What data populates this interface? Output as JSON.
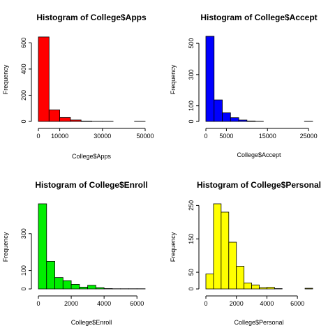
{
  "chart_data": [
    {
      "type": "bar",
      "title": "Histogram of College$Apps",
      "xlabel": "College$Apps",
      "ylabel": "Frequency",
      "color": "#ff0000",
      "bin_edges": [
        0,
        5000,
        10000,
        15000,
        20000,
        25000,
        30000,
        35000,
        40000,
        45000,
        50000
      ],
      "values": [
        645,
        88,
        30,
        11,
        3,
        1,
        1,
        0,
        0,
        1
      ],
      "xlim": [
        0,
        50000
      ],
      "ylim": [
        0,
        650
      ],
      "x_ticks": [
        0,
        10000,
        30000,
        50000
      ],
      "y_ticks": [
        0,
        200,
        400,
        600
      ]
    },
    {
      "type": "bar",
      "title": "Histogram of College$Accept",
      "xlabel": "College$Accept",
      "ylabel": "Frequency",
      "color": "#0000ff",
      "bin_edges": [
        0,
        2000,
        4000,
        6000,
        8000,
        10000,
        12000,
        14000,
        16000,
        18000,
        20000,
        22000,
        24000,
        26000
      ],
      "values": [
        545,
        138,
        55,
        24,
        9,
        3,
        1,
        0,
        0,
        0,
        0,
        0,
        1
      ],
      "xlim": [
        0,
        26000
      ],
      "ylim": [
        0,
        545
      ],
      "x_ticks": [
        0,
        5000,
        15000,
        25000
      ],
      "y_ticks": [
        0,
        100,
        300,
        500
      ]
    },
    {
      "type": "bar",
      "title": "Histogram of College$Enroll",
      "xlabel": "College$Enroll",
      "ylabel": "Frequency",
      "color": "#00ee00",
      "bin_edges": [
        0,
        500,
        1000,
        1500,
        2000,
        2500,
        3000,
        3500,
        4000,
        4500,
        5000,
        5500,
        6000,
        6500
      ],
      "values": [
        462,
        150,
        62,
        45,
        25,
        10,
        20,
        7,
        2,
        1,
        1,
        1,
        1
      ],
      "xlim": [
        0,
        6500
      ],
      "ylim": [
        0,
        462
      ],
      "x_ticks": [
        0,
        2000,
        4000,
        6000
      ],
      "y_ticks": [
        0,
        100,
        300
      ]
    },
    {
      "type": "bar",
      "title": "Histogram of College$Personal",
      "xlabel": "College$Personal",
      "ylabel": "Frequency",
      "color": "#ffff00",
      "bin_edges": [
        0,
        500,
        1000,
        1500,
        2000,
        2500,
        3000,
        3500,
        4000,
        4500,
        5000,
        5500,
        6000,
        6500,
        7000
      ],
      "values": [
        45,
        255,
        230,
        140,
        68,
        18,
        12,
        4,
        5,
        1,
        0,
        0,
        0,
        2
      ],
      "xlim": [
        0,
        7000
      ],
      "ylim": [
        0,
        255
      ],
      "x_ticks": [
        0,
        2000,
        4000,
        6000
      ],
      "y_ticks": [
        0,
        50,
        150,
        250
      ]
    }
  ]
}
